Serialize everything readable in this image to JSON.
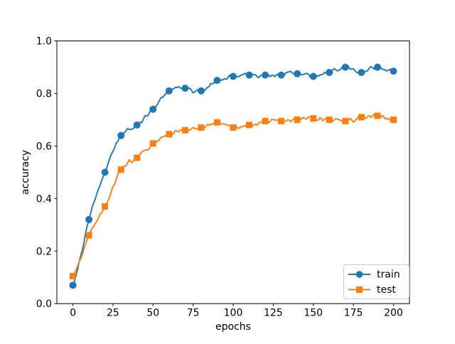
{
  "chart_data": {
    "type": "line",
    "title": "",
    "xlabel": "epochs",
    "ylabel": "accuracy",
    "xlim": [
      -10,
      210
    ],
    "ylim": [
      0.0,
      1.0
    ],
    "x_ticks": [
      0,
      25,
      50,
      75,
      100,
      125,
      150,
      175,
      200
    ],
    "y_ticks": [
      0.0,
      0.2,
      0.4,
      0.6,
      0.8,
      1.0
    ],
    "grid": false,
    "legend": {
      "position": "lower right"
    },
    "marker_interval": 10,
    "marker_x": [
      0,
      10,
      20,
      30,
      40,
      50,
      60,
      70,
      80,
      90,
      100,
      110,
      120,
      130,
      140,
      150,
      160,
      170,
      180,
      190,
      200
    ],
    "series": [
      {
        "name": "train",
        "color": "#1f77b4",
        "marker": "circle",
        "values": [
          0.07,
          0.32,
          0.5,
          0.64,
          0.68,
          0.74,
          0.81,
          0.82,
          0.81,
          0.85,
          0.865,
          0.87,
          0.87,
          0.87,
          0.875,
          0.865,
          0.88,
          0.9,
          0.88,
          0.9,
          0.885
        ]
      },
      {
        "name": "test",
        "color": "#ff7f0e",
        "marker": "square",
        "values": [
          0.105,
          0.26,
          0.37,
          0.51,
          0.555,
          0.61,
          0.645,
          0.66,
          0.67,
          0.69,
          0.67,
          0.68,
          0.695,
          0.695,
          0.7,
          0.705,
          0.7,
          0.695,
          0.71,
          0.715,
          0.7
        ]
      }
    ]
  }
}
